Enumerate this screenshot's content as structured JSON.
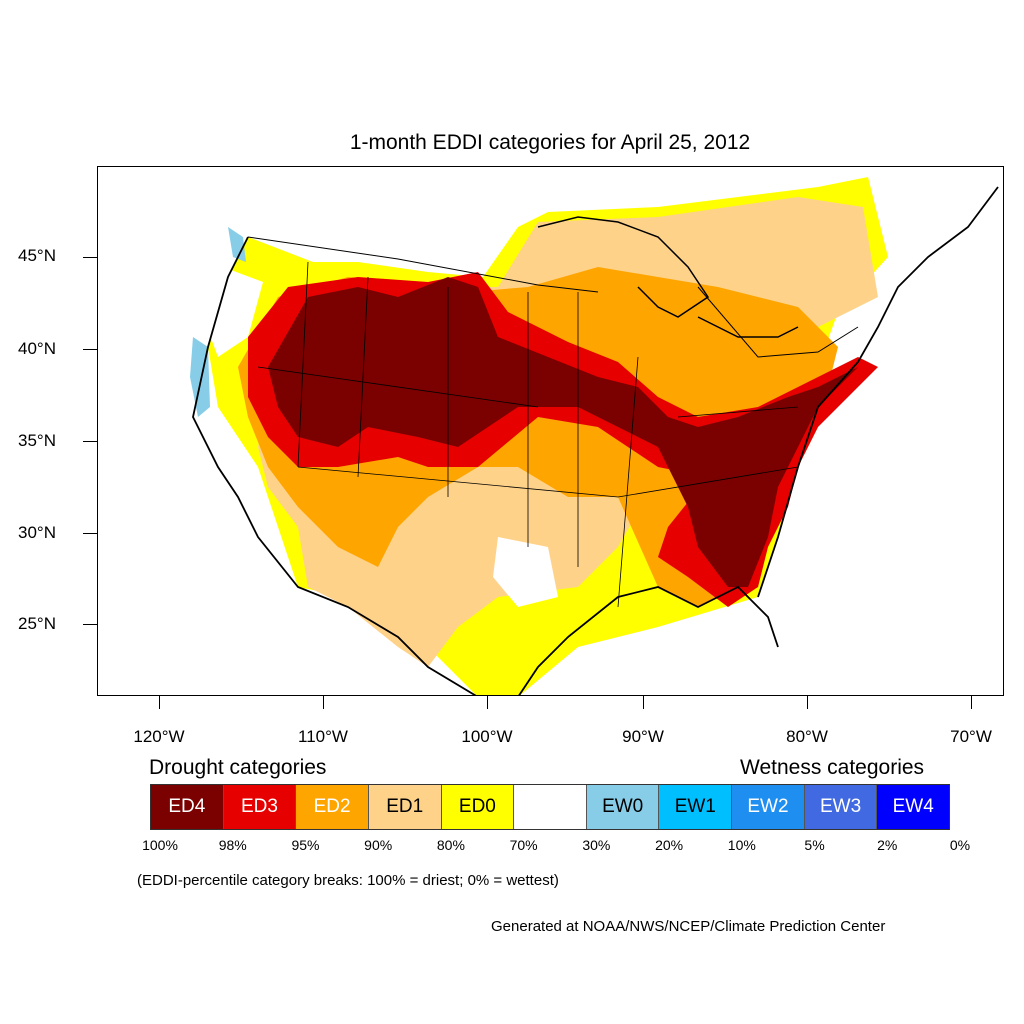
{
  "title": "1-month EDDI categories for April 25, 2012",
  "lat_labels": [
    "45°N",
    "40°N",
    "35°N",
    "30°N",
    "25°N"
  ],
  "lon_labels": [
    "120°W",
    "110°W",
    "100°W",
    "90°W",
    "80°W",
    "70°W"
  ],
  "legend": {
    "drought_heading": "Drought categories",
    "wetness_heading": "Wetness categories",
    "categories": [
      {
        "label": "ED4",
        "color": "#7b0000",
        "text_color": "#ffffff"
      },
      {
        "label": "ED3",
        "color": "#e60000",
        "text_color": "#ffffff"
      },
      {
        "label": "ED2",
        "color": "#ffa500",
        "text_color": "#ffffff"
      },
      {
        "label": "ED1",
        "color": "#ffd28a",
        "text_color": "#000000"
      },
      {
        "label": "ED0",
        "color": "#ffff00",
        "text_color": "#000000"
      },
      {
        "label": "",
        "color": "#ffffff",
        "text_color": "#000000"
      },
      {
        "label": "EW0",
        "color": "#87cde8",
        "text_color": "#000000"
      },
      {
        "label": "EW1",
        "color": "#00bfff",
        "text_color": "#000000"
      },
      {
        "label": "EW2",
        "color": "#1e8ff0",
        "text_color": "#ffffff"
      },
      {
        "label": "EW3",
        "color": "#4169e1",
        "text_color": "#ffffff"
      },
      {
        "label": "EW4",
        "color": "#0000ff",
        "text_color": "#ffffff"
      }
    ],
    "percent_breaks": [
      "100%",
      "98%",
      "95%",
      "90%",
      "80%",
      "70%",
      "30%",
      "20%",
      "10%",
      "5%",
      "2%",
      "0%"
    ]
  },
  "note": "(EDDI-percentile category breaks: 100% = driest; 0% = wettest)",
  "credit": "Generated at NOAA/NWS/NCEP/Climate Prediction Center"
}
